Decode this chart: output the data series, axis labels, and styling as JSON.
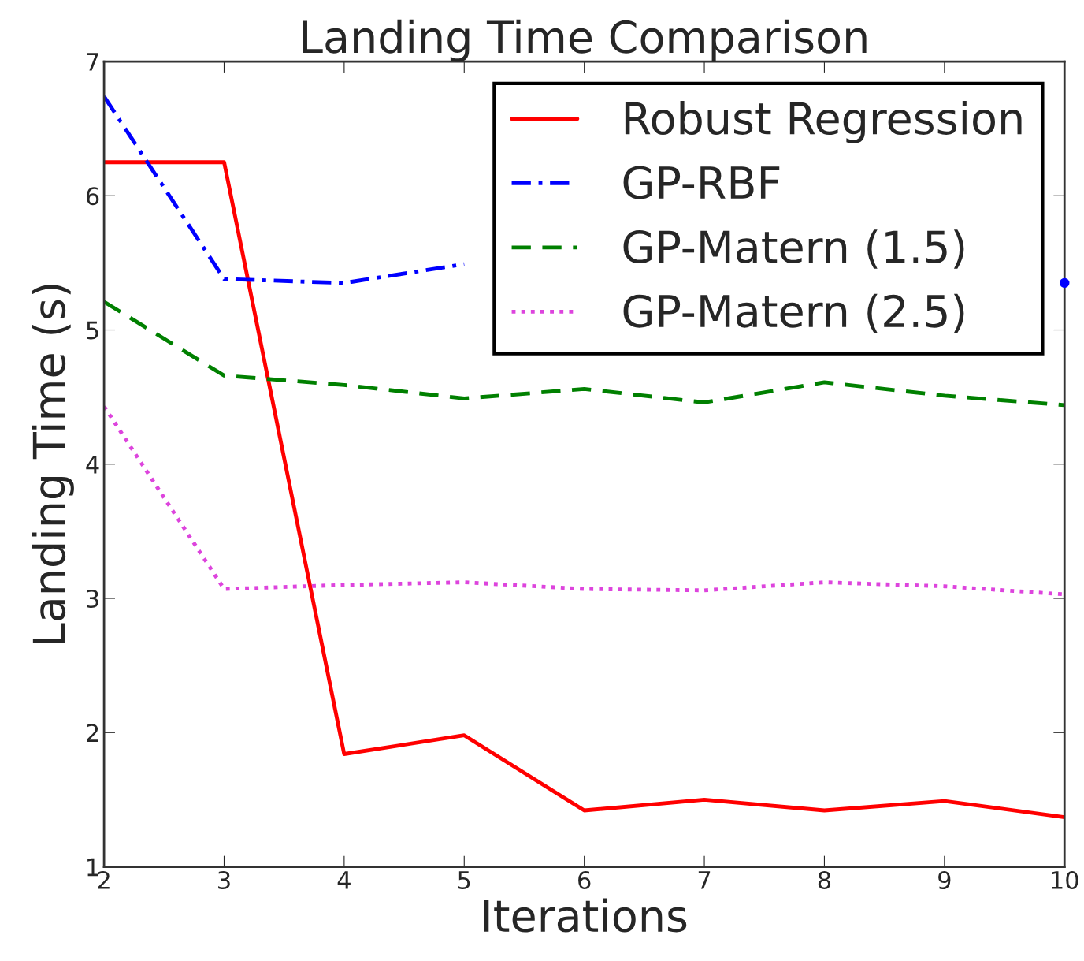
{
  "chart_data": {
    "type": "line",
    "title": "Landing Time Comparison",
    "xlabel": "Iterations",
    "ylabel": "Landing Time (s)",
    "x": [
      2,
      3,
      4,
      5,
      6,
      7,
      8,
      9,
      10
    ],
    "series": [
      {
        "name": "Robust Regression",
        "color": "#ff0000",
        "line_style": "solid",
        "values": [
          6.25,
          6.25,
          1.84,
          1.98,
          1.42,
          1.5,
          1.42,
          1.49,
          1.37
        ]
      },
      {
        "name": "GP-RBF",
        "color": "#0000ff",
        "line_style": "dashdot",
        "values": [
          6.74,
          5.38,
          5.35,
          5.49,
          null,
          null,
          null,
          null,
          5.35
        ]
      },
      {
        "name": "GP-Matern (1.5)",
        "color": "#008000",
        "line_style": "dashed",
        "values": [
          5.21,
          4.66,
          4.59,
          4.49,
          4.56,
          4.46,
          4.61,
          4.51,
          4.44
        ]
      },
      {
        "name": "GP-Matern (2.5)",
        "color": "#dd44dd",
        "line_style": "dotted",
        "values": [
          4.43,
          3.07,
          3.1,
          3.12,
          3.07,
          3.06,
          3.12,
          3.09,
          3.03
        ]
      }
    ],
    "xlim": [
      2,
      10
    ],
    "xticks": [
      2,
      3,
      4,
      5,
      6,
      7,
      8,
      9,
      10
    ],
    "ylim": [
      1,
      7
    ],
    "yticks": [
      1,
      2,
      3,
      4,
      5,
      6,
      7
    ],
    "grid": false,
    "legend": "top right"
  }
}
